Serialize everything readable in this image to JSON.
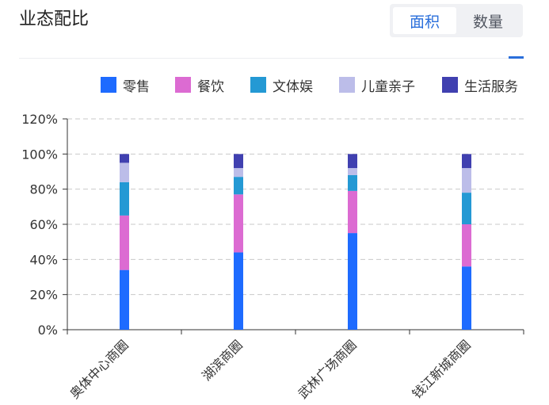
{
  "header": {
    "title": "业态配比",
    "toggle": {
      "options": [
        "面积",
        "数量"
      ],
      "selected_index": 0
    }
  },
  "colors": {
    "accent": "#2a6fdb"
  },
  "chart_data": {
    "type": "bar",
    "stacked": true,
    "categories": [
      "奥体中心商圈",
      "湖滨商圈",
      "武林广场商圈",
      "钱江新城商圈"
    ],
    "series": [
      {
        "name": "零售",
        "color": "#1e6bff",
        "values": [
          34,
          44,
          55,
          36
        ]
      },
      {
        "name": "餐饮",
        "color": "#dc6bd2",
        "values": [
          31,
          33,
          24,
          24
        ]
      },
      {
        "name": "文体娱",
        "color": "#2499d4",
        "values": [
          19,
          10,
          9,
          18
        ]
      },
      {
        "name": "儿童亲子",
        "color": "#bcbde9",
        "values": [
          11,
          5,
          4,
          14
        ]
      },
      {
        "name": "生活服务",
        "color": "#4040b0",
        "values": [
          5,
          8,
          8,
          8
        ]
      }
    ],
    "y_ticks": [
      "0%",
      "20%",
      "40%",
      "60%",
      "80%",
      "100%",
      "120%"
    ],
    "ylim": [
      0,
      120
    ],
    "grid": true,
    "legend_position": "top-right"
  }
}
